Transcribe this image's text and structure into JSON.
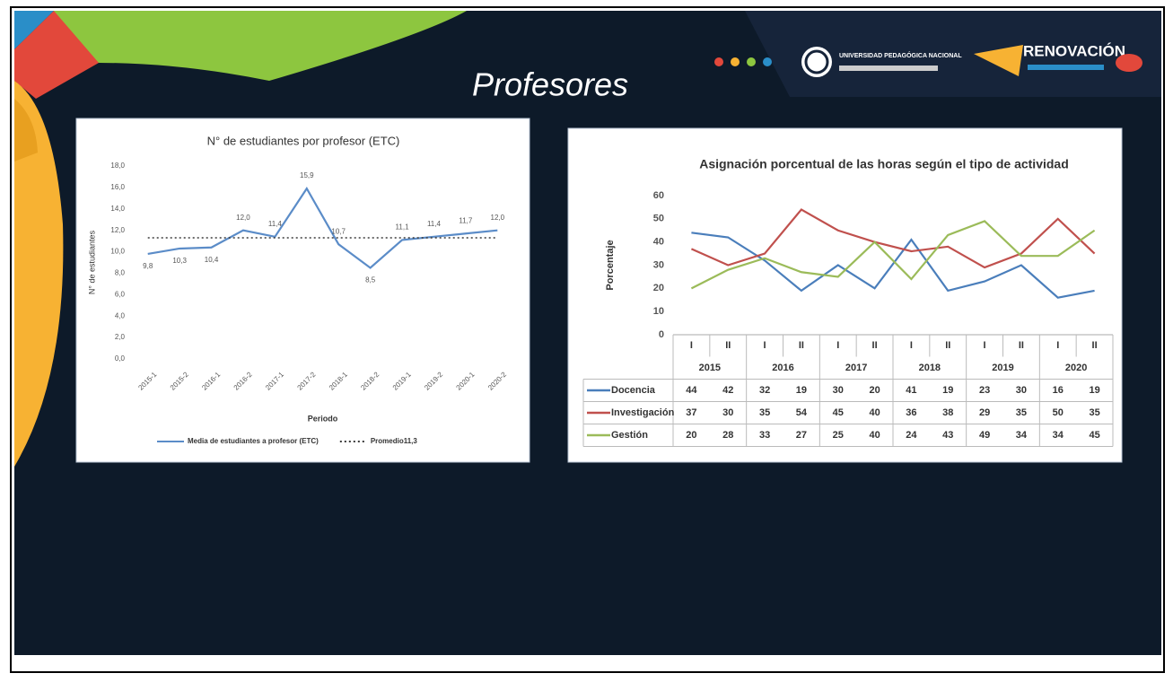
{
  "page_title": "Profesores",
  "logos": {
    "university": "UNIVERSIDAD PEDAGÓGICA NACIONAL",
    "campaign": "RENOVACIÓN"
  },
  "chart_data": [
    {
      "type": "line",
      "title": "N° de estudiantes por profesor (ETC)",
      "xlabel": "Periodo",
      "ylabel": "N° de estudiantes",
      "categories": [
        "2015-1",
        "2015-2",
        "2016-1",
        "2016-2",
        "2017-1",
        "2017-2",
        "2018-1",
        "2018-2",
        "2019-1",
        "2019-2",
        "2020-1",
        "2020-2"
      ],
      "ylim": [
        0,
        18
      ],
      "yticks": [
        {
          "value": 0,
          "label": "0,0"
        },
        {
          "value": 2,
          "label": "2,0"
        },
        {
          "value": 4,
          "label": "4,0"
        },
        {
          "value": 6,
          "label": "6,0"
        },
        {
          "value": 8,
          "label": "8,0"
        },
        {
          "value": 10,
          "label": "10,0"
        },
        {
          "value": 12,
          "label": "12,0"
        },
        {
          "value": 14,
          "label": "14,0"
        },
        {
          "value": 16,
          "label": "16,0"
        },
        {
          "value": 18,
          "label": "18,0"
        }
      ],
      "grid": false,
      "series": [
        {
          "name": "Media de estudiantes a profesor (ETC)",
          "color": "#5b8cc8",
          "style": "solid",
          "values": [
            9.8,
            10.3,
            10.4,
            12.0,
            11.4,
            15.9,
            10.7,
            8.5,
            11.1,
            11.4,
            11.7,
            12.0
          ],
          "value_labels": [
            "9,8",
            "10,3",
            "10,4",
            "12,0",
            "11,4",
            "15,9",
            "10,7",
            "8,5",
            "11,1",
            "11,4",
            "11,7",
            "12,0"
          ]
        },
        {
          "name": "Promedio11,3",
          "color": "#3a3a3a",
          "style": "dotted",
          "values": [
            11.3,
            11.3,
            11.3,
            11.3,
            11.3,
            11.3,
            11.3,
            11.3,
            11.3,
            11.3,
            11.3,
            11.3
          ]
        }
      ]
    },
    {
      "type": "line",
      "title": "Asignación porcentual de las horas según el tipo de actividad",
      "ylabel": "Porcentaje",
      "categories": [
        "I",
        "II",
        "I",
        "II",
        "I",
        "II",
        "I",
        "II",
        "I",
        "II",
        "I",
        "II"
      ],
      "category_groups": [
        "2015",
        "2016",
        "2017",
        "2018",
        "2019",
        "2020"
      ],
      "ylim": [
        0,
        60
      ],
      "yticks": [
        0,
        10,
        20,
        30,
        40,
        50,
        60
      ],
      "grid": false,
      "data_table": true,
      "series": [
        {
          "name": "Docencia",
          "color": "#4a7ebb",
          "style": "solid",
          "values": [
            44,
            42,
            32,
            19,
            30,
            20,
            41,
            19,
            23,
            30,
            16,
            19
          ]
        },
        {
          "name": "Investigación",
          "color": "#c0504d",
          "style": "solid",
          "values": [
            37,
            30,
            35,
            54,
            45,
            40,
            36,
            38,
            29,
            35,
            50,
            35
          ]
        },
        {
          "name": "Gestión",
          "color": "#9bbb59",
          "style": "solid",
          "values": [
            20,
            28,
            33,
            27,
            25,
            40,
            24,
            43,
            49,
            34,
            34,
            45
          ]
        }
      ]
    }
  ]
}
